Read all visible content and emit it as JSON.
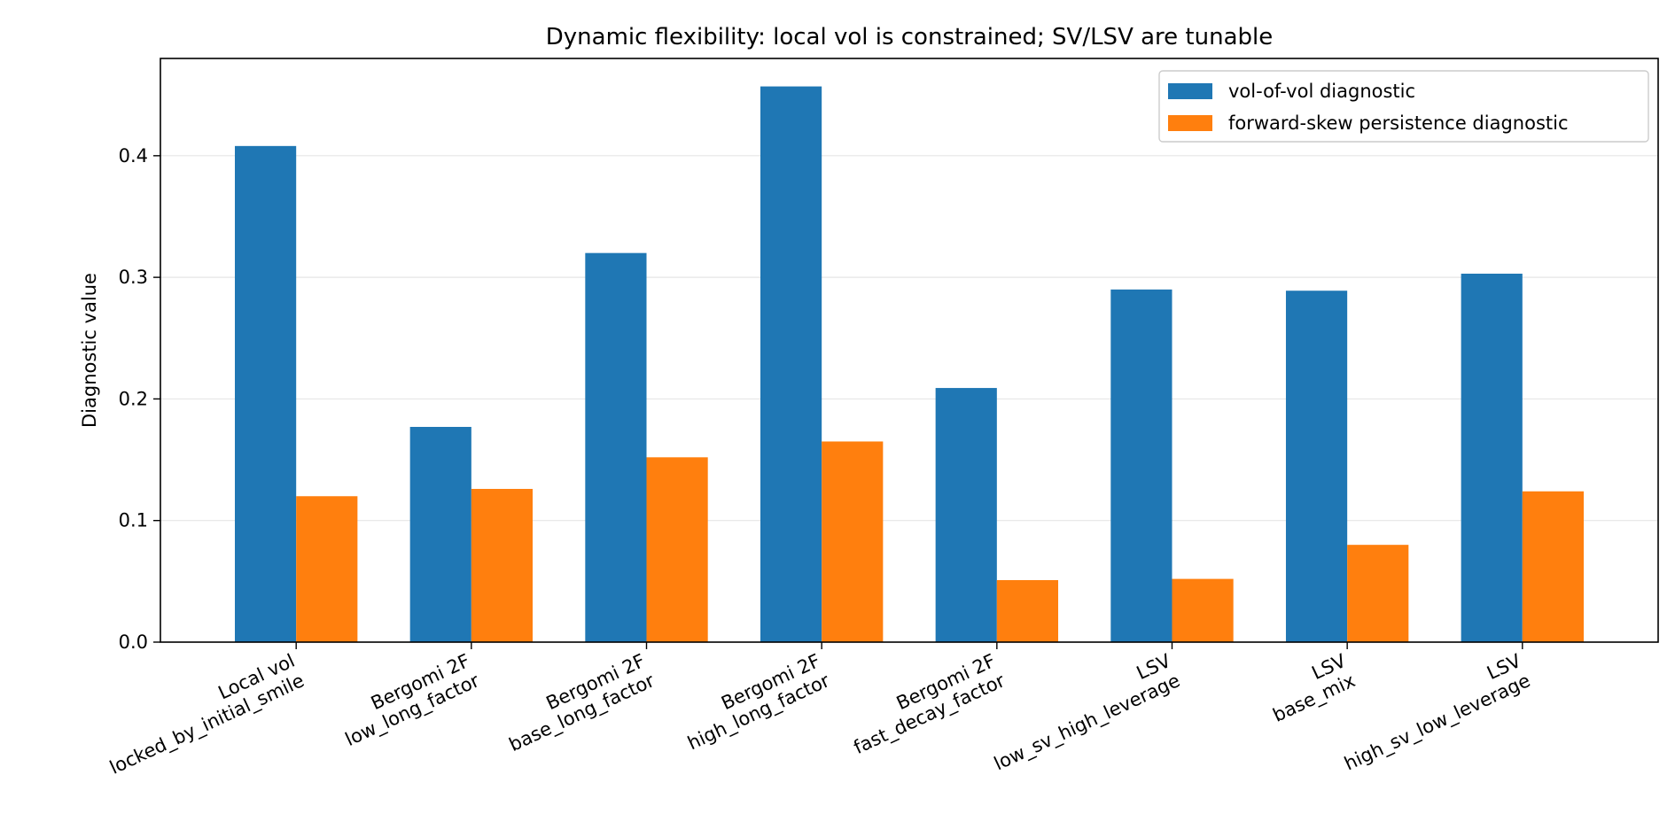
{
  "chart_data": {
    "type": "bar",
    "title": "Dynamic flexibility: local vol is constrained; SV/LSV are tunable",
    "xlabel": "",
    "ylabel": "Diagnostic value",
    "ylim": [
      0,
      0.48
    ],
    "yticks": [
      0.0,
      0.1,
      0.2,
      0.3,
      0.4
    ],
    "ytick_labels": [
      "0.0",
      "0.1",
      "0.2",
      "0.3",
      "0.4"
    ],
    "grid": "y-axis, light",
    "legend_position": "top-right",
    "categories": [
      [
        "Local vol",
        "locked_by_initial_smile"
      ],
      [
        "Bergomi 2F",
        "low_long_factor"
      ],
      [
        "Bergomi 2F",
        "base_long_factor"
      ],
      [
        "Bergomi 2F",
        "high_long_factor"
      ],
      [
        "Bergomi 2F",
        "fast_decay_factor"
      ],
      [
        "LSV",
        "low_sv_high_leverage"
      ],
      [
        "LSV",
        "base_mix"
      ],
      [
        "LSV",
        "high_sv_low_leverage"
      ]
    ],
    "series": [
      {
        "name": "vol-of-vol diagnostic",
        "color": "#1f77b4",
        "values": [
          0.408,
          0.177,
          0.32,
          0.457,
          0.209,
          0.29,
          0.289,
          0.303
        ]
      },
      {
        "name": "forward-skew persistence diagnostic",
        "color": "#ff7f0e",
        "values": [
          0.12,
          0.126,
          0.152,
          0.165,
          0.051,
          0.052,
          0.08,
          0.124
        ]
      }
    ]
  }
}
